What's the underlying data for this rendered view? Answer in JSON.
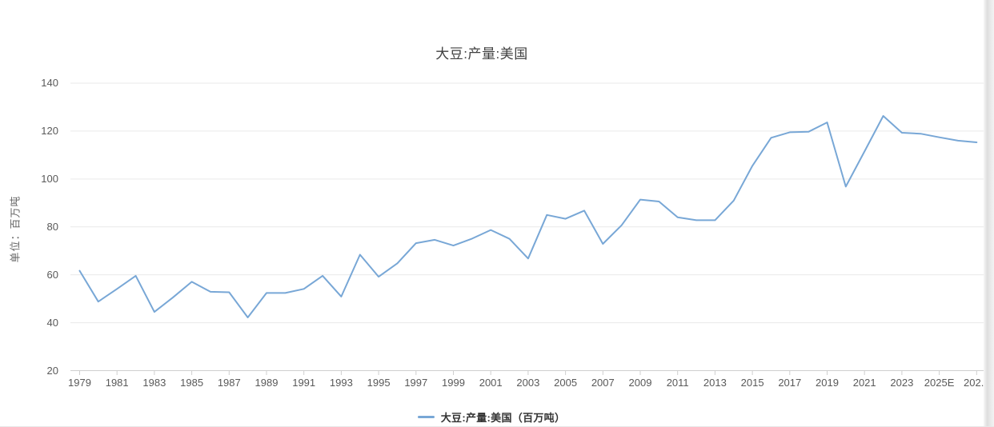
{
  "chart": {
    "title": "大豆:产量:美国",
    "y_axis_title": "单位：百万吨",
    "legend_label": "大豆:产量:美国（百万吨）",
    "line_color": "#78a7d6",
    "grid_color": "#e9e9e9",
    "axis_color": "#cfcfcf",
    "tick_text_color": "#595959"
  },
  "chart_data": {
    "type": "line",
    "title": "大豆:产量:美国",
    "ylabel": "单位：百万吨",
    "legend_position": "bottom",
    "grid": "horizontal",
    "ylim": [
      20,
      140
    ],
    "y_ticks": [
      20,
      40,
      60,
      80,
      100,
      120,
      140
    ],
    "x": [
      1979,
      1980,
      1981,
      1982,
      1983,
      1984,
      1985,
      1986,
      1987,
      1988,
      1989,
      1990,
      1991,
      1992,
      1993,
      1994,
      1995,
      1996,
      1997,
      1998,
      1999,
      2000,
      2001,
      2002,
      2003,
      2004,
      2005,
      2006,
      2007,
      2008,
      2009,
      2010,
      2011,
      2012,
      2013,
      2014,
      2015,
      2016,
      2017,
      2018,
      2019,
      2020,
      2021,
      2022,
      2023,
      2024,
      2025,
      2026,
      2027
    ],
    "x_tick_labels": [
      "1979",
      "1981",
      "1983",
      "1985",
      "1987",
      "1989",
      "1991",
      "1993",
      "1995",
      "1997",
      "1999",
      "2001",
      "2003",
      "2005",
      "2007",
      "2009",
      "2011",
      "2013",
      "2015",
      "2017",
      "2019",
      "2021",
      "2023",
      "2025E",
      "202..."
    ],
    "series": [
      {
        "name": "大豆:产量:美国（百万吨）",
        "values": [
          61.7,
          48.8,
          54.1,
          59.6,
          44.5,
          50.6,
          57.1,
          52.9,
          52.7,
          42.2,
          52.4,
          52.4,
          54.1,
          59.6,
          50.9,
          68.4,
          59.2,
          64.8,
          73.2,
          74.6,
          72.2,
          75.1,
          78.7,
          75.0,
          66.8,
          85.0,
          83.4,
          86.8,
          72.9,
          80.7,
          91.4,
          90.6,
          84.0,
          82.8,
          82.8,
          91.0,
          105.5,
          117.2,
          119.5,
          119.7,
          123.6,
          96.8,
          111.5,
          126.3,
          119.3,
          118.9,
          117.4,
          116.0,
          115.3
        ]
      }
    ]
  }
}
